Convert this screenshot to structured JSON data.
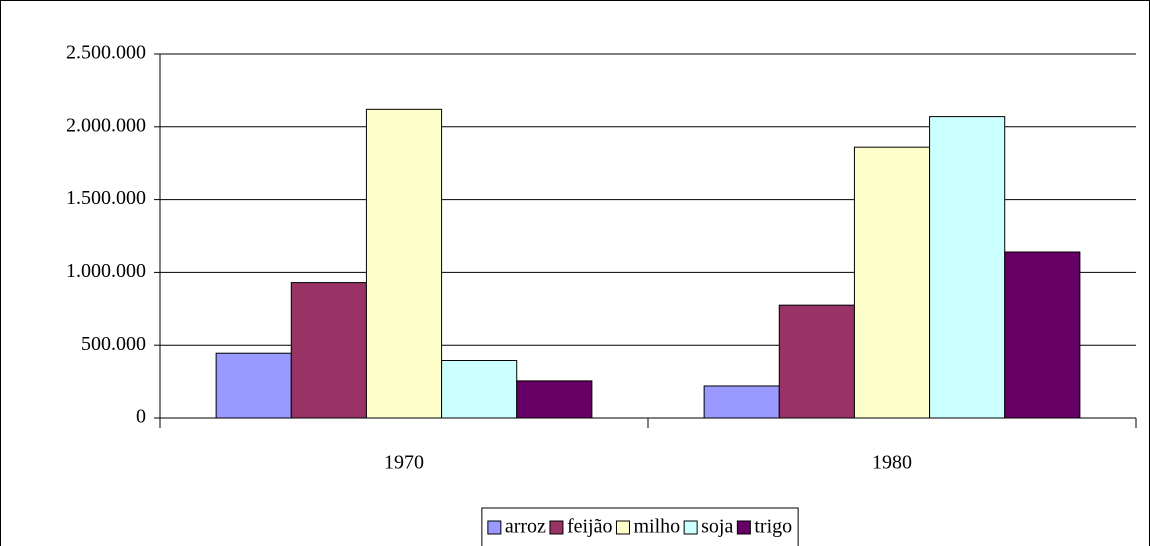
{
  "chart_data": {
    "type": "bar",
    "categories": [
      "1970",
      "1980"
    ],
    "series": [
      {
        "name": "arroz",
        "color": "#9999ff",
        "values": [
          445000,
          220000
        ]
      },
      {
        "name": "feijão",
        "color": "#993366",
        "values": [
          930000,
          775000
        ]
      },
      {
        "name": "milho",
        "color": "#ffffcc",
        "values": [
          2120000,
          1860000
        ]
      },
      {
        "name": "soja",
        "color": "#ccffff",
        "values": [
          395000,
          2070000
        ]
      },
      {
        "name": "trigo",
        "color": "#660066",
        "values": [
          255000,
          1140000
        ]
      }
    ],
    "ylim": [
      0,
      2500000
    ],
    "yticks": [
      0,
      {
        "value": 500000,
        "label": "500.000"
      },
      {
        "value": 1000000,
        "label": "1.000.000"
      },
      {
        "value": 1500000,
        "label": "1.500.000"
      },
      {
        "value": 2000000,
        "label": "2.000.000"
      },
      {
        "value": 2500000,
        "label": "2.500.000"
      }
    ],
    "grid": true,
    "legend": "bottom"
  }
}
